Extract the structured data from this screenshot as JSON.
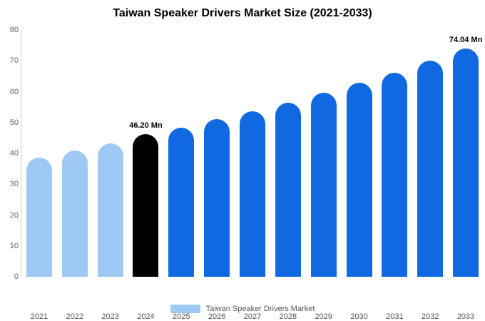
{
  "title": "Taiwan Speaker Drivers Market Size (2021-2033)",
  "legend": {
    "label": "Taiwan Speaker Drivers Market",
    "swatch_color": "#9ec9f4"
  },
  "colors": {
    "historical_bar": "#9ec9f4",
    "base_year_bar": "#000000",
    "forecast_bar": "#1169e1",
    "axis_text": "#666666",
    "axis_line": "#cfcfcf",
    "background": "#ffffff"
  },
  "chart_data": {
    "type": "bar",
    "title": "Taiwan Speaker Drivers Market Size (2021-2033)",
    "xlabel": "",
    "ylabel": "",
    "unit": "Mn",
    "categories": [
      "2021",
      "2022",
      "2023",
      "2024",
      "2025",
      "2026",
      "2027",
      "2028",
      "2029",
      "2030",
      "2031",
      "2032",
      "2033"
    ],
    "values": [
      38.6,
      41.0,
      43.3,
      46.2,
      48.4,
      51.0,
      53.7,
      56.4,
      59.7,
      62.9,
      66.2,
      70.0,
      74.04
    ],
    "bar_colors": [
      "#9ec9f4",
      "#9ec9f4",
      "#9ec9f4",
      "#000000",
      "#1169e1",
      "#1169e1",
      "#1169e1",
      "#1169e1",
      "#1169e1",
      "#1169e1",
      "#1169e1",
      "#1169e1",
      "#1169e1"
    ],
    "annotations": [
      {
        "index": 3,
        "category": "2024",
        "text": "46.20 Mn"
      },
      {
        "index": 12,
        "category": "2033",
        "text": "74.04 Mn"
      }
    ],
    "ylim": [
      0,
      80
    ],
    "yticks": [
      0,
      10,
      20,
      30,
      40,
      50,
      60,
      70,
      80
    ],
    "grid": false,
    "legend_position": "bottom",
    "legend_entries": [
      "Taiwan Speaker Drivers Market"
    ]
  }
}
